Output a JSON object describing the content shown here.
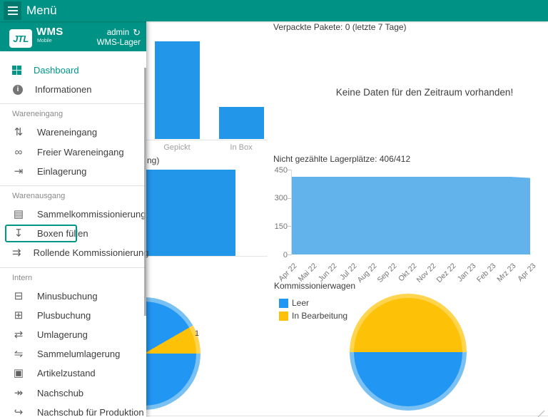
{
  "topbar": {
    "title": "Menü"
  },
  "colors": {
    "accent_teal": "#009285",
    "active_teal": "#009688",
    "bar_blue": "#2296e8",
    "area_blue": "#62b2ec",
    "pie_blue": "#2196f3",
    "pie_yellow": "#ffc107"
  },
  "sidebar": {
    "logo_text": "JTL",
    "brand": "WMS",
    "brand_sub": "Mobile",
    "user": "admin",
    "sync_icon": "refresh",
    "warehouse": "WMS-Lager",
    "sections": [
      {
        "label": null,
        "items": [
          {
            "label": "Dashboard",
            "icon": "dashboard",
            "active": true
          },
          {
            "label": "Informationen",
            "icon": "info"
          }
        ]
      },
      {
        "label": "Wareneingang",
        "items": [
          {
            "label": "Wareneingang",
            "icon": "arrows-updown"
          },
          {
            "label": "Freier Wareneingang",
            "icon": "infinity"
          },
          {
            "label": "Einlagerung",
            "icon": "arrow-into-bar"
          }
        ]
      },
      {
        "label": "Warenausgang",
        "items": [
          {
            "label": "Sammelkommissionierung",
            "icon": "clipboard"
          },
          {
            "label": "Boxen füllen",
            "icon": "tray-download",
            "highlighted": true
          },
          {
            "label": "Rollende Kommissionierung",
            "icon": "trolley"
          }
        ]
      },
      {
        "label": "Intern",
        "items": [
          {
            "label": "Minusbuchung",
            "icon": "minus-box"
          },
          {
            "label": "Plusbuchung",
            "icon": "plus-box"
          },
          {
            "label": "Umlagerung",
            "icon": "transfer"
          },
          {
            "label": "Sammelumlagerung",
            "icon": "transfer-multi"
          },
          {
            "label": "Artikelzustand",
            "icon": "screen"
          },
          {
            "label": "Nachschub",
            "icon": "arrow-double"
          },
          {
            "label": "Nachschub für Produktion",
            "icon": "arrow-redo"
          }
        ]
      }
    ]
  },
  "chart_data": [
    {
      "type": "bar",
      "categories": [
        "Gepickt",
        "In Box"
      ],
      "values": [
        3,
        1
      ],
      "title": ""
    },
    {
      "type": "empty",
      "title": "Verpackte Pakete: 0 (letzte 7 Tage)",
      "message": "Keine Daten für den Zeitraum vorhanden!"
    },
    {
      "type": "bar",
      "title_visible_fragment": "ng)",
      "categories": [
        ""
      ],
      "values": [
        3
      ]
    },
    {
      "type": "area",
      "title": "Nicht gezählte Lagerplätze: 406/412",
      "x": [
        "Apr 22",
        "Mai 22",
        "Jun 22",
        "Jul 22",
        "Aug 22",
        "Sep 22",
        "Okt 22",
        "Nov 22",
        "Dez 22",
        "Jan 23",
        "Feb 23",
        "Mrz 23",
        "Apr 23"
      ],
      "values": [
        412,
        412,
        412,
        412,
        412,
        412,
        412,
        412,
        412,
        412,
        412,
        412,
        406
      ],
      "yticks": [
        0,
        150,
        300,
        450
      ],
      "ylim": [
        0,
        450
      ],
      "grid": false,
      "legend_position": "none"
    },
    {
      "type": "pie",
      "title": "Kommissionierwagen",
      "legend_position": "top-left",
      "legend": [
        {
          "label": "Leer",
          "color": "#2196f3"
        },
        {
          "label": "In Bearbeitung",
          "color": "#ffc107"
        }
      ],
      "pies": [
        {
          "slices": [
            {
              "label": "Leer",
              "value": 11
            },
            {
              "label": "In Bearbeitung",
              "value": 1
            }
          ],
          "data_label": "1"
        },
        {
          "slices": [
            {
              "label": "In Bearbeitung",
              "value": 1
            },
            {
              "label": "Leer",
              "value": 1
            }
          ],
          "data_label": ""
        }
      ]
    }
  ]
}
